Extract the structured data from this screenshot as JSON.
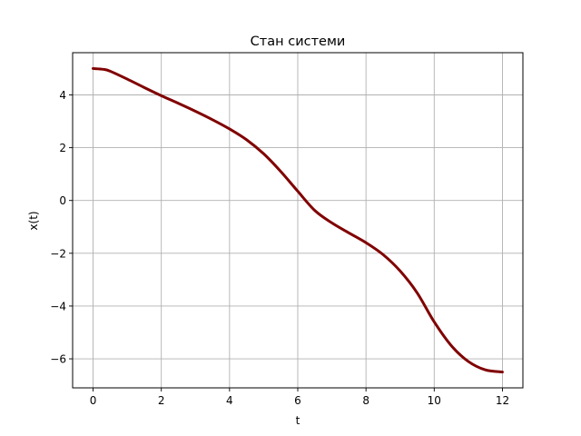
{
  "chart_data": {
    "type": "line",
    "title": "Стан системи",
    "xlabel": "t",
    "ylabel": "x(t)",
    "xlim": [
      -0.6,
      12.6
    ],
    "ylim": [
      -7.1,
      5.6
    ],
    "xticks": [
      0,
      2,
      4,
      6,
      8,
      10,
      12
    ],
    "yticks": [
      4,
      2,
      0,
      -2,
      -4,
      -6
    ],
    "xtick_labels": [
      "0",
      "2",
      "4",
      "6",
      "8",
      "10",
      "12"
    ],
    "ytick_labels": [
      "4",
      "2",
      "0",
      "−2",
      "−4",
      "−6"
    ],
    "grid": true,
    "line_color": "#800000",
    "series": [
      {
        "x": [
          0,
          0.3,
          0.5,
          1,
          1.5,
          2,
          2.5,
          3,
          3.5,
          4,
          4.5,
          5,
          5.5,
          6,
          6.5,
          7,
          7.5,
          8,
          8.5,
          9,
          9.5,
          10,
          10.5,
          11,
          11.5,
          12
        ],
        "y": [
          5.0,
          4.97,
          4.9,
          4.6,
          4.28,
          3.97,
          3.68,
          3.38,
          3.06,
          2.71,
          2.3,
          1.77,
          1.1,
          0.35,
          -0.38,
          -0.85,
          -1.23,
          -1.6,
          -2.05,
          -2.67,
          -3.5,
          -4.6,
          -5.5,
          -6.1,
          -6.42,
          -6.5
        ]
      }
    ]
  }
}
